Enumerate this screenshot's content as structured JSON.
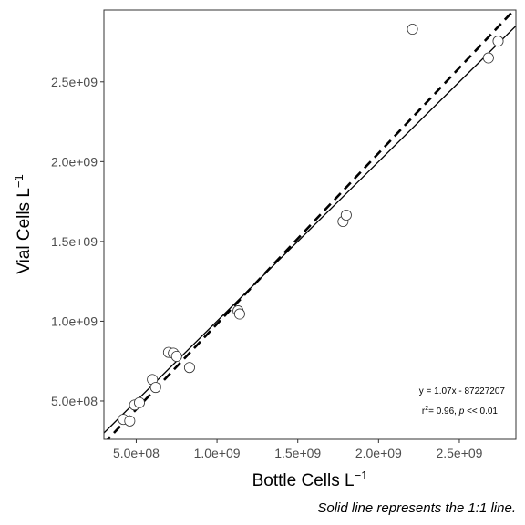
{
  "chart_data": {
    "type": "scatter",
    "xlabel": "Bottle Cells L",
    "ylabel": "Vial Cells L",
    "unit_superscript": "−1",
    "xlim": [
      300000000,
      2850000000
    ],
    "ylim": [
      260000000,
      2950000000
    ],
    "x_ticks": [
      500000000,
      1000000000,
      1500000000,
      2000000000,
      2500000000
    ],
    "x_tick_labels": [
      "5.0e+08",
      "1.0e+09",
      "1.5e+09",
      "2.0e+09",
      "2.5e+09"
    ],
    "y_ticks": [
      500000000,
      1000000000,
      1500000000,
      2000000000,
      2500000000
    ],
    "y_tick_labels": [
      "5.0e+08",
      "1.0e+09",
      "1.5e+09",
      "2.0e+09",
      "2.5e+09"
    ],
    "grid": false,
    "points": [
      {
        "x": 420000000,
        "y": 385000000
      },
      {
        "x": 460000000,
        "y": 375000000
      },
      {
        "x": 490000000,
        "y": 475000000
      },
      {
        "x": 520000000,
        "y": 490000000
      },
      {
        "x": 600000000,
        "y": 635000000
      },
      {
        "x": 620000000,
        "y": 585000000
      },
      {
        "x": 700000000,
        "y": 805000000
      },
      {
        "x": 730000000,
        "y": 800000000
      },
      {
        "x": 750000000,
        "y": 780000000
      },
      {
        "x": 830000000,
        "y": 710000000
      },
      {
        "x": 1130000000,
        "y": 1065000000
      },
      {
        "x": 1140000000,
        "y": 1045000000
      },
      {
        "x": 1780000000,
        "y": 1625000000
      },
      {
        "x": 1800000000,
        "y": 1665000000
      },
      {
        "x": 2210000000,
        "y": 2830000000
      },
      {
        "x": 2680000000,
        "y": 2650000000
      },
      {
        "x": 2740000000,
        "y": 2755000000
      }
    ],
    "lines": [
      {
        "style": "solid",
        "slope": 1,
        "intercept": 0
      },
      {
        "style": "dashed",
        "slope": 1.07,
        "intercept": -87227207
      }
    ],
    "annotations": {
      "equation": "y = 1.07x - 87227207",
      "r2_prefix": "r",
      "r2_sup": "2",
      "r2_value": "= 0.96, ",
      "p_symbol": "p",
      "p_value": " << 0.01"
    },
    "caption": "Solid line represents the 1:1 line.",
    "colors": {
      "point_fill": "#ffffff",
      "point_stroke": "#333333",
      "line": "#000000",
      "panel_border": "#333333"
    }
  }
}
